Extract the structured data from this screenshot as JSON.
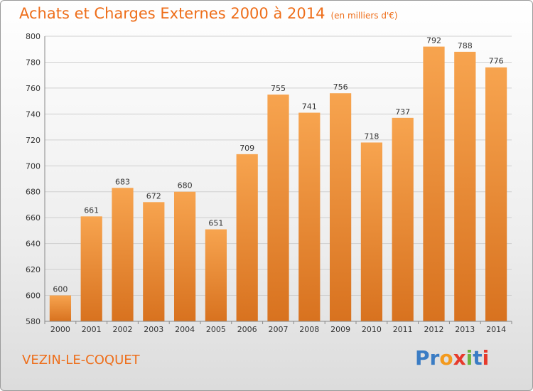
{
  "title": "Achats et Charges Externes 2000 à 2014",
  "subtitle": "(en milliers d'€)",
  "town": "VEZIN-LE-COQUET",
  "logo_text": "Proxiti",
  "colors": {
    "accent": "#ee6e1a",
    "bar_top": "#f7a44f",
    "bar_bottom": "#d8721f"
  },
  "chart_data": {
    "type": "bar",
    "title": "Achats et Charges Externes 2000 à 2014",
    "subtitle": "(en milliers d'€)",
    "categories": [
      "2000",
      "2001",
      "2002",
      "2003",
      "2004",
      "2005",
      "2006",
      "2007",
      "2008",
      "2009",
      "2010",
      "2011",
      "2012",
      "2013",
      "2014"
    ],
    "values": [
      600,
      661,
      683,
      672,
      680,
      651,
      709,
      755,
      741,
      756,
      718,
      737,
      792,
      788,
      776
    ],
    "ylim": [
      580,
      800
    ],
    "yticks": [
      580,
      600,
      620,
      640,
      660,
      680,
      700,
      720,
      740,
      760,
      780,
      800
    ],
    "grid": true,
    "xlabel": "",
    "ylabel": ""
  }
}
